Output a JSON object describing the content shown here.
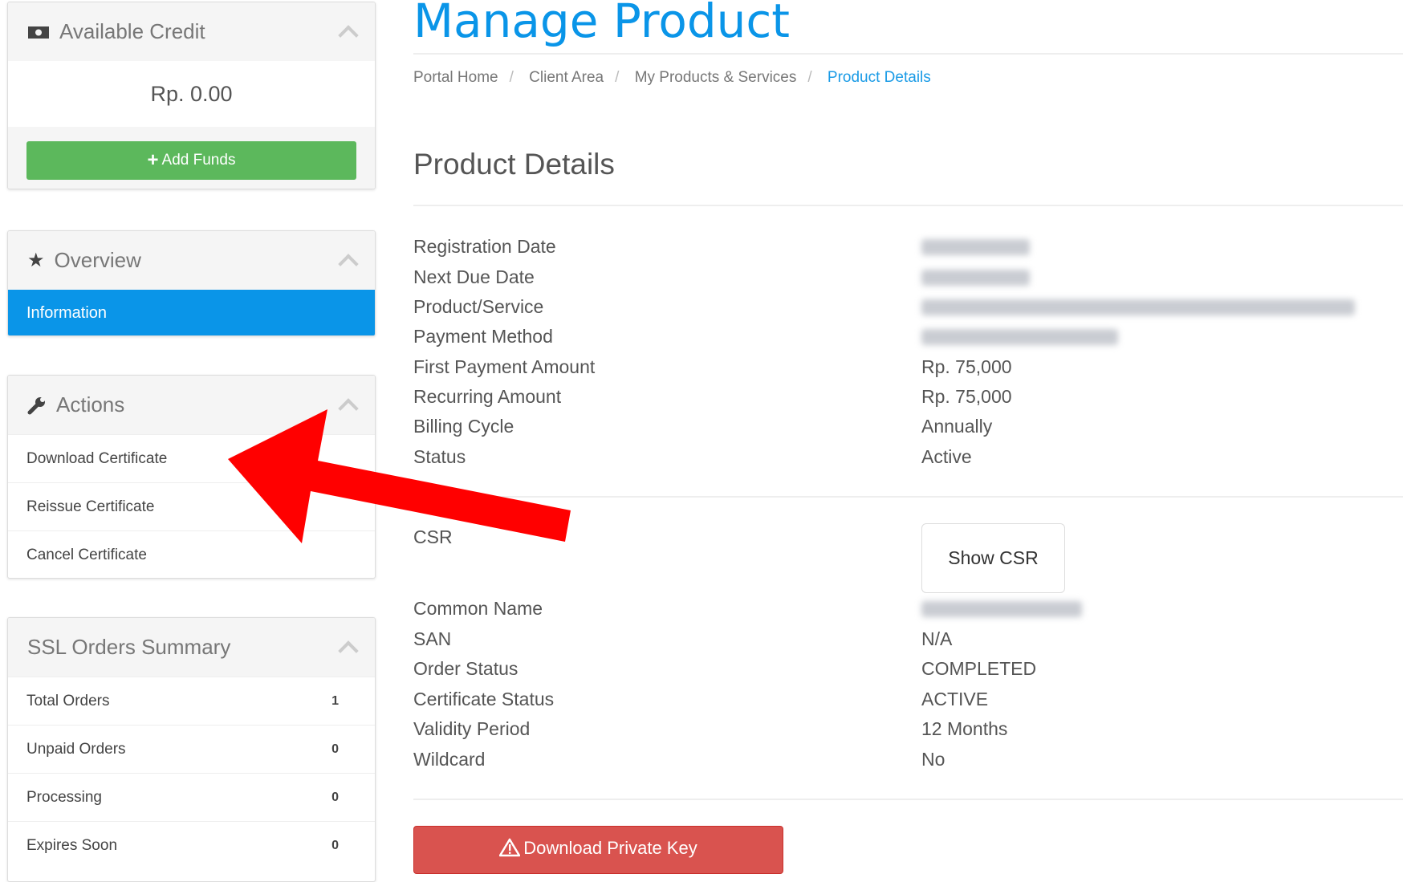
{
  "sidebar": {
    "credit": {
      "title": "Available Credit",
      "amount": "Rp. 0.00",
      "add_funds": "Add Funds",
      "icon": "money-icon"
    },
    "overview": {
      "title": "Overview",
      "icon": "star-icon",
      "items": [
        {
          "label": "Information",
          "active": true
        }
      ]
    },
    "actions": {
      "title": "Actions",
      "icon": "wrench-icon",
      "items": [
        {
          "label": "Download Certificate"
        },
        {
          "label": "Reissue Certificate"
        },
        {
          "label": "Cancel Certificate"
        }
      ]
    },
    "ssl_summary": {
      "title": "SSL Orders Summary",
      "items": [
        {
          "label": "Total Orders",
          "count": "1"
        },
        {
          "label": "Unpaid Orders",
          "count": "0"
        },
        {
          "label": "Processing",
          "count": "0"
        },
        {
          "label": "Expires Soon",
          "count": "0"
        }
      ]
    }
  },
  "main": {
    "title": "Manage Product",
    "breadcrumb": [
      "Portal Home",
      "Client Area",
      "My Products & Services",
      "Product Details"
    ],
    "section_title": "Product Details",
    "details": [
      {
        "label": "Registration Date",
        "value": null
      },
      {
        "label": "Next Due Date",
        "value": null
      },
      {
        "label": "Product/Service",
        "value": null
      },
      {
        "label": "Payment Method",
        "value": null
      },
      {
        "label": "First Payment Amount",
        "value": "Rp. 75,000"
      },
      {
        "label": "Recurring Amount",
        "value": "Rp. 75,000"
      },
      {
        "label": "Billing Cycle",
        "value": "Annually"
      },
      {
        "label": "Status",
        "value": "Active"
      }
    ],
    "csr_label": "CSR",
    "show_csr": "Show CSR",
    "cert": [
      {
        "label": "Common Name",
        "value": null
      },
      {
        "label": "SAN",
        "value": "N/A"
      },
      {
        "label": "Order Status",
        "value": "COMPLETED"
      },
      {
        "label": "Certificate Status",
        "value": "ACTIVE"
      },
      {
        "label": "Validity Period",
        "value": "12 Months"
      },
      {
        "label": "Wildcard",
        "value": "No"
      }
    ],
    "download_private_key": "Download Private Key"
  },
  "colors": {
    "accent": "#0a95e8",
    "success": "#5cb85c",
    "danger": "#d9534f",
    "annotation_arrow": "#ff0000"
  }
}
